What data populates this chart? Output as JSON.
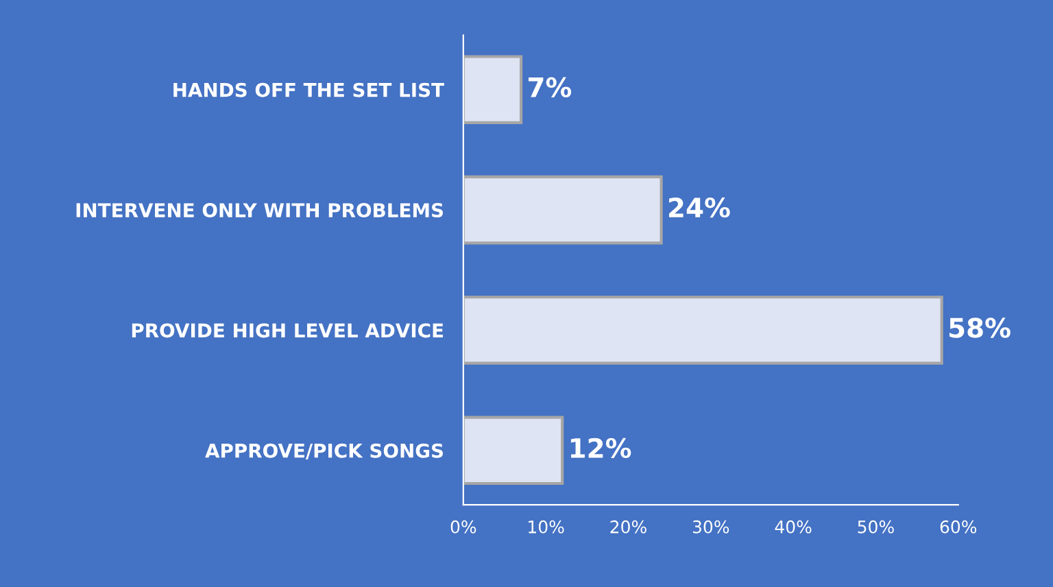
{
  "chart_data": {
    "type": "bar",
    "orientation": "horizontal",
    "categories": [
      "HANDS OFF THE SET LIST",
      "INTERVENE ONLY WITH PROBLEMS",
      "PROVIDE HIGH LEVEL ADVICE",
      "APPROVE/PICK SONGS"
    ],
    "values": [
      7,
      24,
      58,
      12
    ],
    "color": "#dfe4f4",
    "value_labels": [
      "7%",
      "24%",
      "58%",
      "12%"
    ],
    "xlim": [
      0,
      60
    ],
    "xticks": [
      {
        "value": 0,
        "label": "0%"
      },
      {
        "value": 10,
        "label": "10%"
      },
      {
        "value": 20,
        "label": "20%"
      },
      {
        "value": 30,
        "label": "30%"
      },
      {
        "value": 40,
        "label": "40%"
      },
      {
        "value": 50,
        "label": "50%"
      },
      {
        "value": 60,
        "label": "60%"
      }
    ]
  }
}
